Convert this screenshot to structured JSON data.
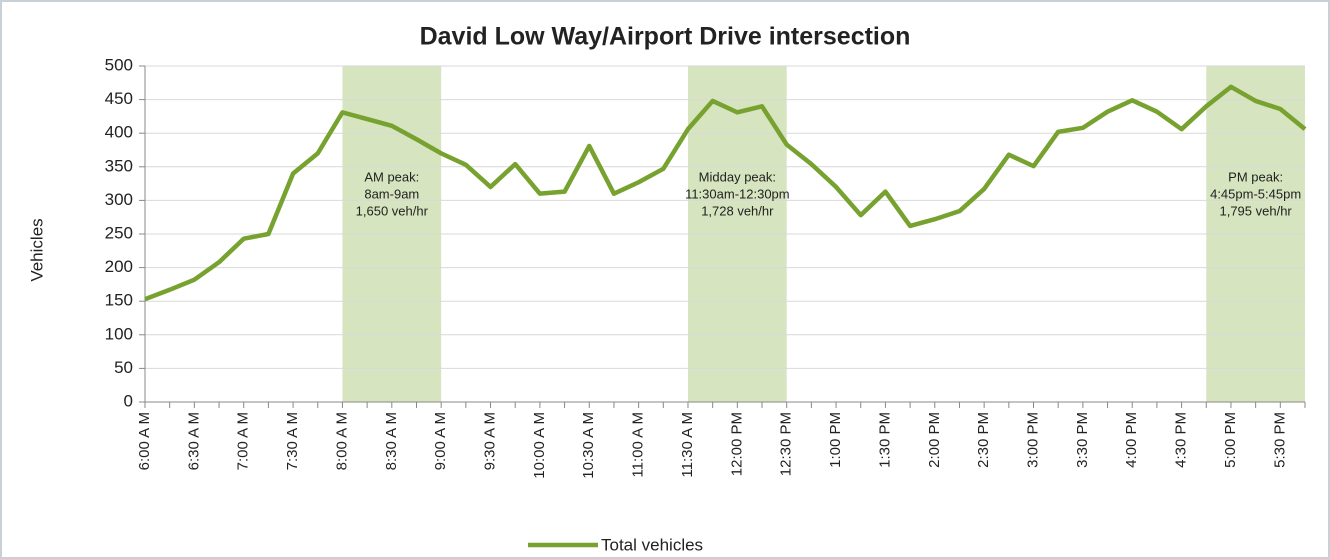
{
  "chart_data": {
    "type": "line",
    "title": "David Low Way/Airport Drive intersection",
    "y_label": "Vehicles",
    "categories": [
      "6:00 A M",
      null,
      "6:30 A M",
      null,
      "7:00 A M",
      null,
      "7:30 A M",
      null,
      "8:00 A M",
      null,
      "8:30 A M",
      null,
      "9:00 A M",
      null,
      "9:30 A M",
      null,
      "10:00 A M",
      null,
      "10:30 A M",
      null,
      "11:00 A M",
      null,
      "11:30 A M",
      null,
      "12:00 PM",
      null,
      "12:30 PM",
      null,
      "1:00 PM",
      null,
      "1:30 PM",
      null,
      "2:00 PM",
      null,
      "2:30 PM",
      null,
      "3:00 PM",
      null,
      "3:30 PM",
      null,
      "4:00 PM",
      null,
      "4:30 PM",
      null,
      "5:00 PM",
      null,
      "5:30 PM",
      null
    ],
    "series": [
      {
        "name": "Total vehicles",
        "color": "#77a22f",
        "values": [
          153,
          167,
          182,
          208,
          243,
          250,
          340,
          370,
          431,
          421,
          411,
          391,
          370,
          353,
          320,
          354,
          310,
          313,
          381,
          310,
          327,
          347,
          406,
          448,
          431,
          440,
          383,
          354,
          320,
          278,
          313,
          262,
          272,
          284,
          317,
          368,
          351,
          402,
          408,
          432,
          449,
          432,
          406,
          440,
          469,
          448,
          436,
          406
        ]
      }
    ],
    "ylim": [
      0,
      500
    ],
    "yticks": [
      0,
      50,
      100,
      150,
      200,
      250,
      300,
      350,
      400,
      450,
      500
    ],
    "grid": true,
    "band_color": "#d6e4bf",
    "annotations": [
      {
        "text": [
          "AM peak:",
          "8am-9am",
          "1,650 veh/hr"
        ],
        "start": 8,
        "end": 12
      },
      {
        "text": [
          "Midday peak:",
          "11:30am-12:30pm",
          "1,728 veh/hr"
        ],
        "start": 22,
        "end": 26
      },
      {
        "text": [
          "PM peak:",
          "4:45pm-5:45pm",
          "1,795 veh/hr"
        ],
        "start": 43,
        "end": 47
      }
    ],
    "legend": "bottom"
  }
}
